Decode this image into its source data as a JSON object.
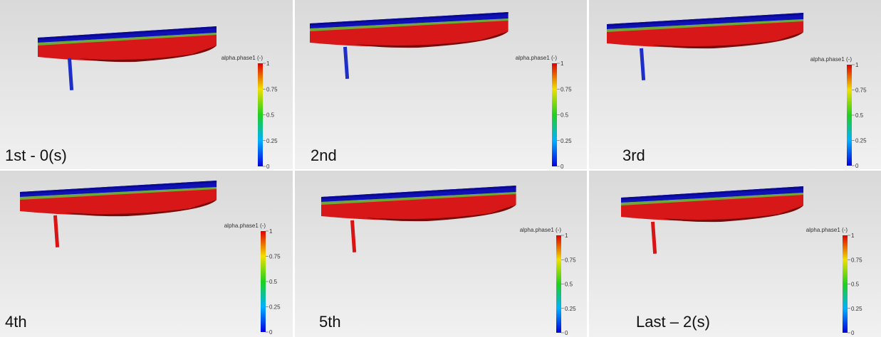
{
  "panels": [
    {
      "label": "1st - 0(s)",
      "legend": {
        "title": "alpha.phase1 (-)",
        "ticks": [
          "1",
          "0.75",
          "0.5",
          "0.25",
          "0"
        ]
      }
    },
    {
      "label": "2nd",
      "legend": {
        "title": "alpha.phase1 (-)",
        "ticks": [
          "1",
          "0.75",
          "0.5",
          "0.25",
          "0"
        ]
      }
    },
    {
      "label": "3rd",
      "legend": {
        "title": "alpha.phase1 (-)",
        "ticks": [
          "1",
          "0.75",
          "0.5",
          "0.25",
          "0"
        ]
      }
    },
    {
      "label": "4th",
      "legend": {
        "title": "alpha.phase1 (-)",
        "ticks": [
          "1",
          "0.75",
          "0.5",
          "0.25",
          "0"
        ]
      }
    },
    {
      "label": "5th",
      "legend": {
        "title": "alpha.phase1 (-)",
        "ticks": [
          "1",
          "0.75",
          "0.5",
          "0.25",
          "0"
        ]
      }
    },
    {
      "label": "Last – 2(s)",
      "legend": {
        "title": "alpha.phase1 (-)",
        "ticks": [
          "1",
          "0.75",
          "0.5",
          "0.25",
          "0"
        ]
      }
    }
  ]
}
